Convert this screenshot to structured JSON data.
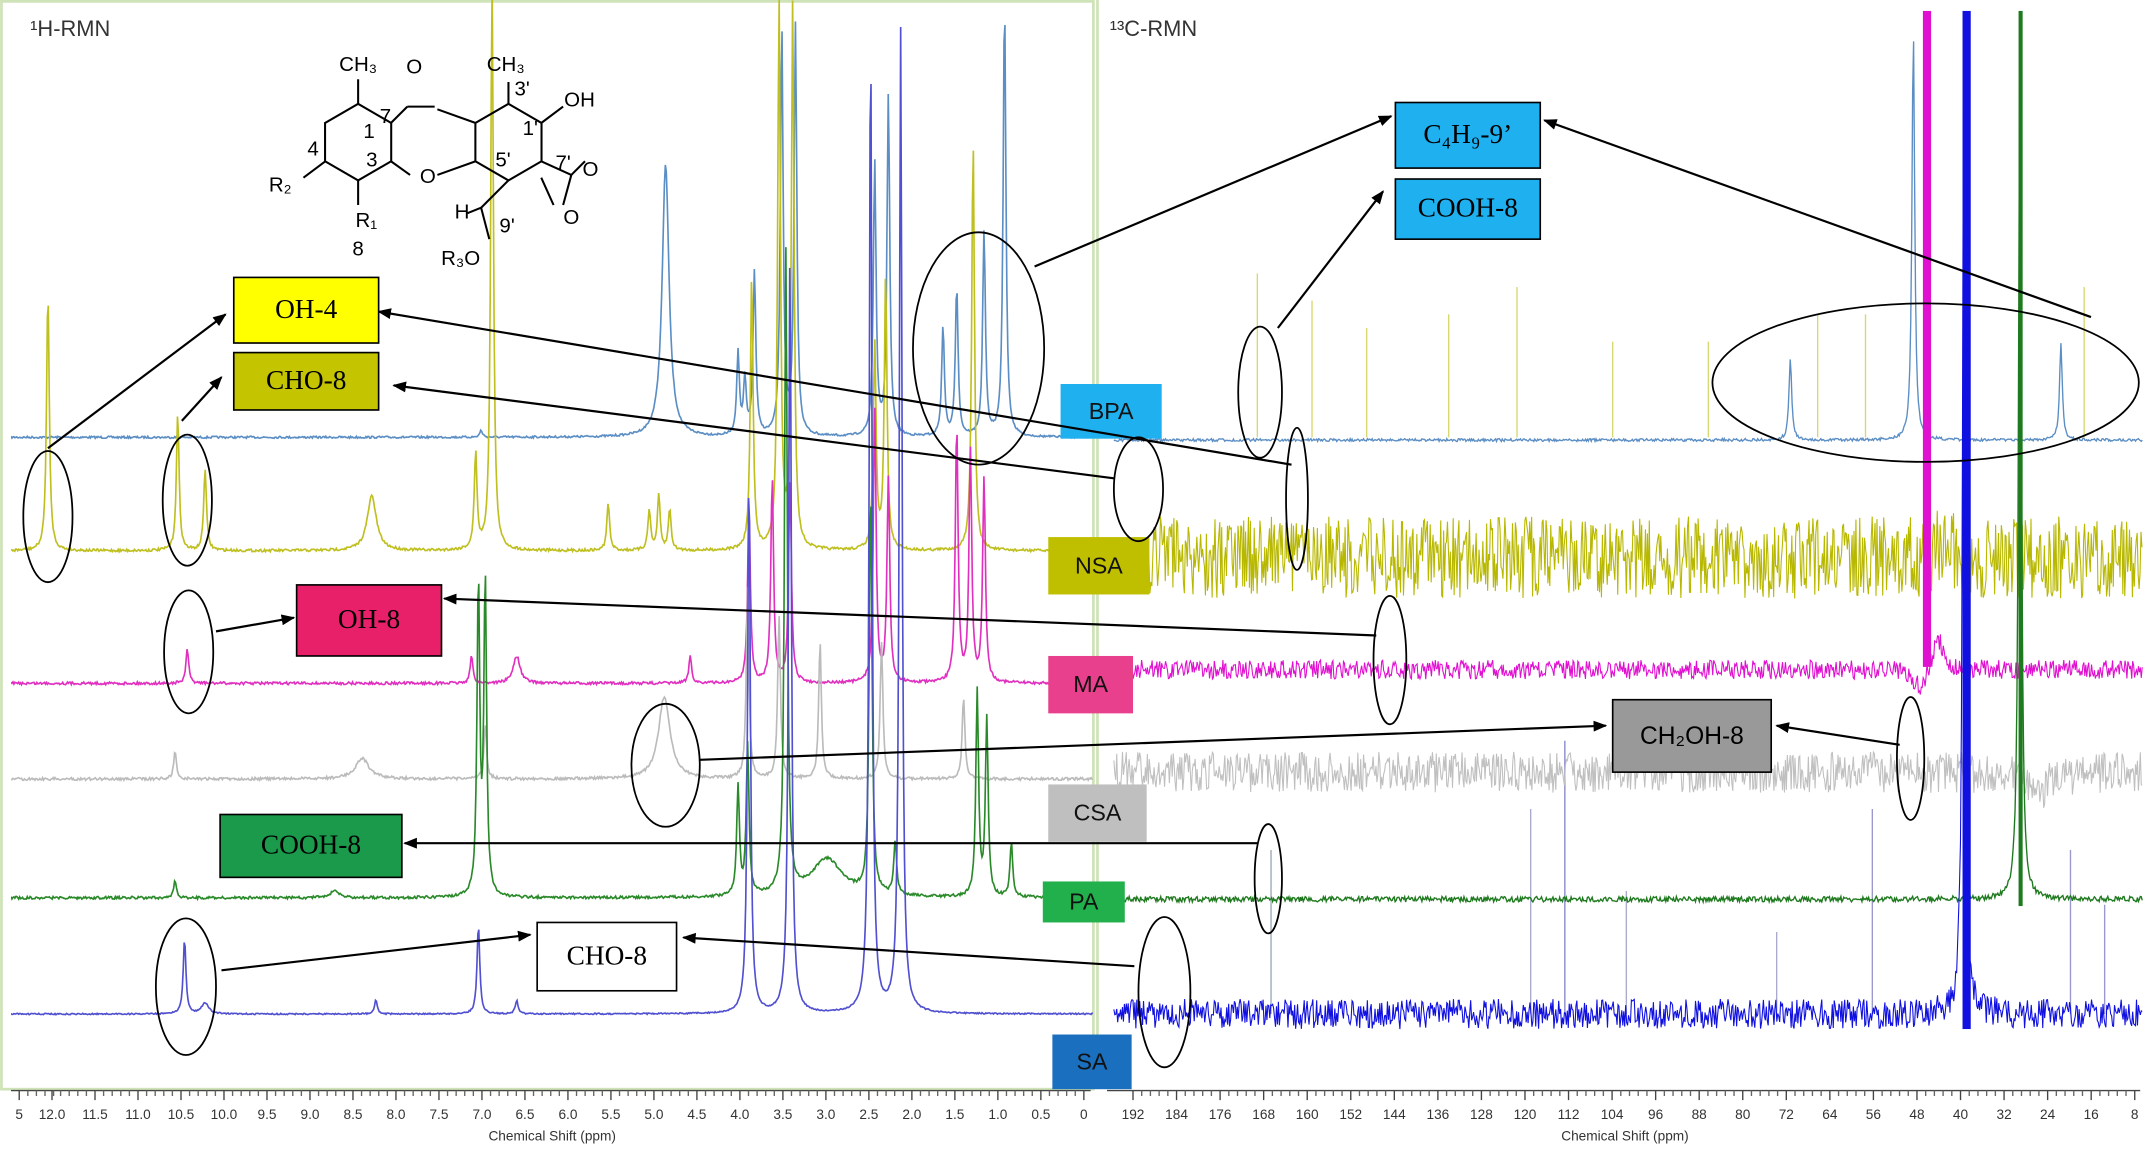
{
  "panels": [
    {
      "title": "¹H-RMN",
      "x_label": "Chemical Shift (ppm)",
      "xticks": [
        "5",
        "12.0",
        "11.5",
        "11.0",
        "10.5",
        "10.0",
        "9.5",
        "9.0",
        "8.5",
        "8.0",
        "7.5",
        "7.0",
        "6.5",
        "6.0",
        "5.5",
        "5.0",
        "4.5",
        "4.0",
        "3.5",
        "3.0",
        "2.5",
        "2.0",
        "1.5",
        "1.0",
        "0.5",
        "0"
      ]
    },
    {
      "title": "¹³C-RMN",
      "x_label": "Chemical Shift (ppm)",
      "xticks": [
        "192",
        "184",
        "176",
        "168",
        "160",
        "152",
        "144",
        "136",
        "128",
        "120",
        "112",
        "104",
        "96",
        "88",
        "80",
        "72",
        "64",
        "56",
        "48",
        "40",
        "32",
        "24",
        "16",
        "8"
      ]
    }
  ],
  "samples": [
    "BPA",
    "NSA",
    "MA",
    "CSA",
    "PA",
    "SA"
  ],
  "annotations": [
    "OH-4",
    "CHO-8",
    "OH-8",
    "COOH-8",
    "CHO-8",
    "C₄H₉-9’",
    "COOH-8",
    "CH₂OH-8"
  ],
  "structure": [
    "CH₃",
    "O",
    "CH₃",
    "OH",
    "7",
    "1",
    "3'",
    "1'",
    "4",
    "R₂",
    "3",
    "O",
    "5'",
    "7'",
    "O",
    "H",
    "O",
    "R₁",
    "8",
    "9'",
    "R₃O"
  ]
}
